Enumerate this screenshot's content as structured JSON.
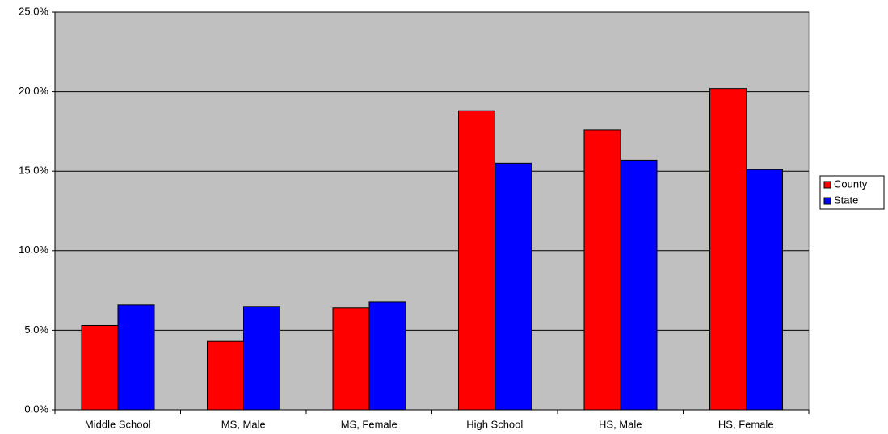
{
  "chart_data": {
    "type": "bar",
    "categories": [
      "Middle School",
      "MS, Male",
      "MS, Female",
      "High School",
      "HS, Male",
      "HS, Female"
    ],
    "series": [
      {
        "name": "County",
        "color": "#ff0000",
        "values": [
          5.3,
          4.3,
          6.4,
          18.8,
          17.6,
          20.2
        ]
      },
      {
        "name": "State",
        "color": "#0000ff",
        "values": [
          6.6,
          6.5,
          6.8,
          15.5,
          15.7,
          15.1
        ]
      }
    ],
    "ylim": [
      0,
      25
    ],
    "yticks": [
      {
        "value": 0,
        "label": "0.0%"
      },
      {
        "value": 5,
        "label": "5.0%"
      },
      {
        "value": 10,
        "label": "10.0%"
      },
      {
        "value": 15,
        "label": "15.0%"
      },
      {
        "value": 20,
        "label": "20.0%"
      },
      {
        "value": 25,
        "label": "25.0%"
      }
    ],
    "grid": true,
    "background": "#c0c0c0",
    "legend": "right"
  }
}
